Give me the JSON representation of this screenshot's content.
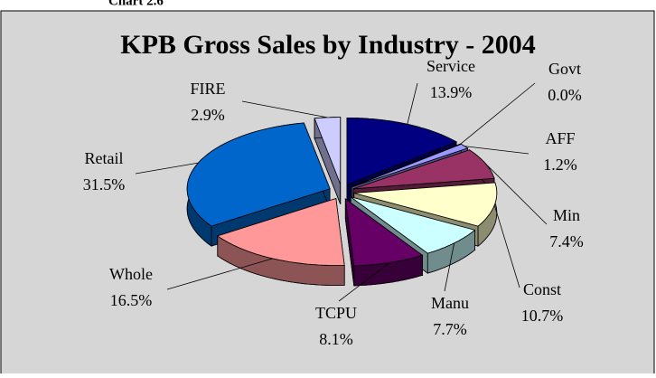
{
  "caption": "Chart 2.6",
  "chart_data": {
    "type": "pie3d",
    "title": "KPB Gross Sales by Industry - 2004",
    "categories": [
      "Service",
      "Govt",
      "AFF",
      "Min",
      "Const",
      "Manu",
      "TCPU",
      "Whole",
      "Retail",
      "FIRE"
    ],
    "values": [
      13.9,
      0.0,
      1.2,
      7.4,
      10.7,
      7.7,
      8.1,
      16.5,
      31.5,
      2.9
    ],
    "value_labels": [
      "13.9%",
      "0.0%",
      "1.2%",
      "7.4%",
      "10.7%",
      "7.7%",
      "8.1%",
      "16.5%",
      "31.5%",
      "2.9%"
    ],
    "colors": [
      "#000080",
      "#6666cc",
      "#9999ff",
      "#993366",
      "#ffffcc",
      "#ccffff",
      "#660066",
      "#ff9999",
      "#0066cc",
      "#ccccff"
    ]
  }
}
